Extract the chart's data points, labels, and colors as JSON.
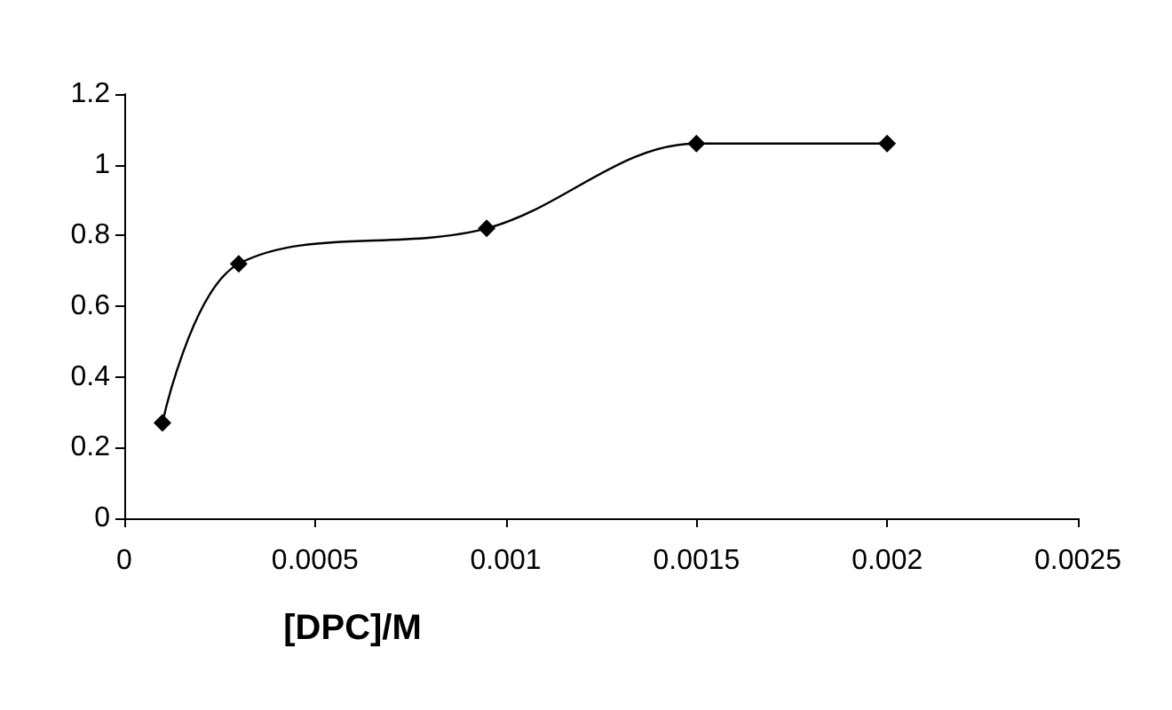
{
  "chart_data": {
    "type": "line",
    "xlabel": "[DPC]/M",
    "x": [
      0.0001,
      0.0003,
      0.00095,
      0.0015,
      0.002
    ],
    "series": [
      {
        "color": "#000000",
        "values": [
          0.27,
          0.72,
          0.82,
          1.06,
          1.06
        ]
      }
    ],
    "xlim": [
      0,
      0.0025
    ],
    "xticks": [
      0,
      0.0005,
      0.001,
      0.0015,
      0.002,
      0.0025
    ],
    "ylim": [
      0,
      1.2
    ],
    "yticks": [
      0,
      0.2,
      0.4,
      0.6,
      0.8,
      1,
      1.2
    ],
    "grid": false,
    "marker": "diamond",
    "line_style": "solid"
  }
}
